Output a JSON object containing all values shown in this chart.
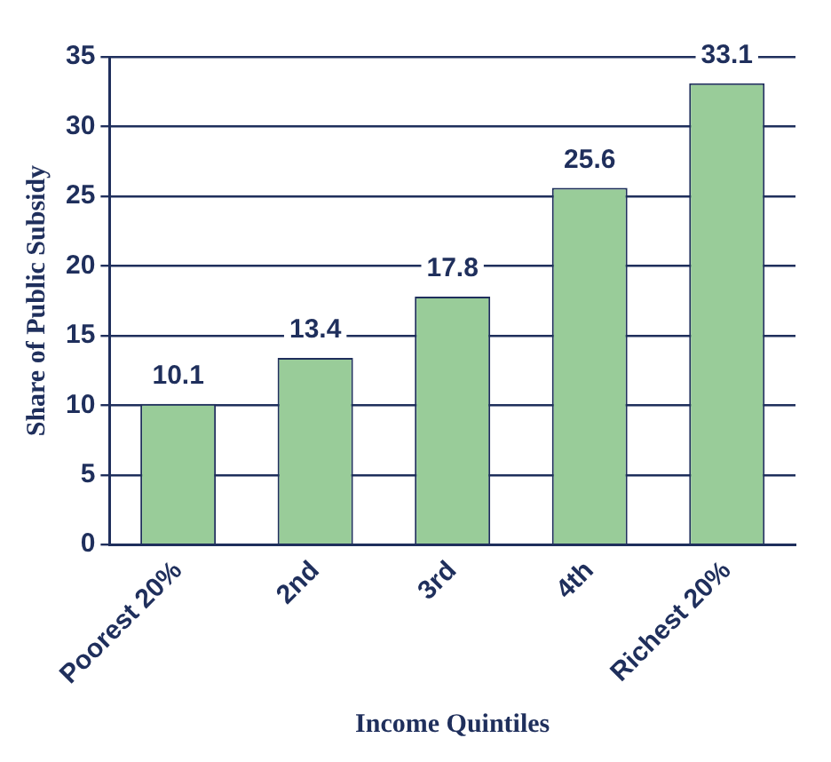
{
  "chart_data": {
    "type": "bar",
    "xlabel": "Income Quintiles",
    "ylabel": "Share of Public Subsidy",
    "categories": [
      "Poorest 20%",
      "2nd",
      "3rd",
      "4th",
      "Richest 20%"
    ],
    "values": [
      10.1,
      13.4,
      17.8,
      25.6,
      33.1
    ],
    "color": "#99cc99",
    "ylim": [
      0,
      35
    ],
    "yticks": [
      0,
      5,
      10,
      15,
      20,
      25,
      30,
      35
    ],
    "grid": "y",
    "data_labels": true,
    "legend": false
  }
}
